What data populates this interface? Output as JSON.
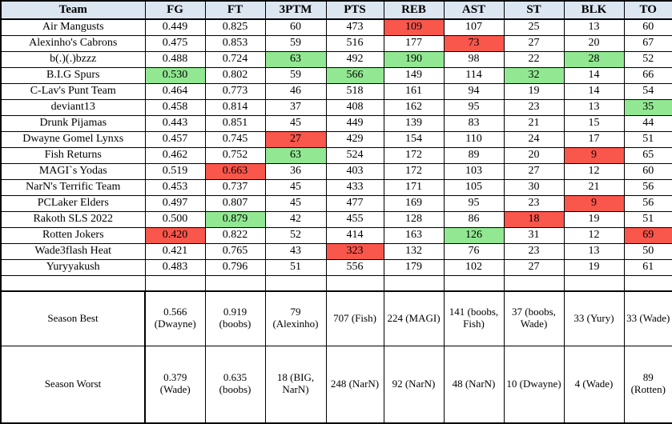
{
  "table": {
    "columns": [
      "Team",
      "FG",
      "FT",
      "3PTM",
      "PTS",
      "REB",
      "AST",
      "ST",
      "BLK",
      "TO"
    ],
    "rows": [
      {
        "team": "Air Mangusts",
        "values": [
          "0.449",
          "0.825",
          "60",
          "473",
          "109",
          "107",
          "25",
          "13",
          "60"
        ],
        "highlights": [
          "",
          "",
          "",
          "",
          "r",
          "",
          "",
          "",
          ""
        ]
      },
      {
        "team": "Alexinho's Cabrons",
        "values": [
          "0.475",
          "0.853",
          "59",
          "516",
          "177",
          "73",
          "27",
          "20",
          "67"
        ],
        "highlights": [
          "",
          "",
          "",
          "",
          "",
          "r",
          "",
          "",
          ""
        ]
      },
      {
        "team": "b(.)(.)bzzz",
        "values": [
          "0.488",
          "0.724",
          "63",
          "492",
          "190",
          "98",
          "22",
          "28",
          "52"
        ],
        "highlights": [
          "",
          "",
          "g",
          "",
          "g",
          "",
          "",
          "g",
          ""
        ]
      },
      {
        "team": "B.I.G Spurs",
        "values": [
          "0.530",
          "0.802",
          "59",
          "566",
          "149",
          "114",
          "32",
          "14",
          "66"
        ],
        "highlights": [
          "g",
          "",
          "",
          "g",
          "",
          "",
          "g",
          "",
          ""
        ]
      },
      {
        "team": "C-Lav's Punt Team",
        "values": [
          "0.464",
          "0.773",
          "46",
          "518",
          "161",
          "94",
          "19",
          "14",
          "54"
        ],
        "highlights": [
          "",
          "",
          "",
          "",
          "",
          "",
          "",
          "",
          ""
        ]
      },
      {
        "team": "deviant13",
        "values": [
          "0.458",
          "0.814",
          "37",
          "408",
          "162",
          "95",
          "23",
          "13",
          "35"
        ],
        "highlights": [
          "",
          "",
          "",
          "",
          "",
          "",
          "",
          "",
          "g"
        ]
      },
      {
        "team": "Drunk Pijamas",
        "values": [
          "0.443",
          "0.851",
          "45",
          "449",
          "139",
          "83",
          "21",
          "15",
          "44"
        ],
        "highlights": [
          "",
          "",
          "",
          "",
          "",
          "",
          "",
          "",
          ""
        ]
      },
      {
        "team": "Dwayne Gomel Lynxs",
        "values": [
          "0.457",
          "0.745",
          "27",
          "429",
          "154",
          "110",
          "24",
          "17",
          "51"
        ],
        "highlights": [
          "",
          "",
          "r",
          "",
          "",
          "",
          "",
          "",
          ""
        ]
      },
      {
        "team": "Fish Returns",
        "values": [
          "0.462",
          "0.752",
          "63",
          "524",
          "172",
          "89",
          "20",
          "9",
          "65"
        ],
        "highlights": [
          "",
          "",
          "g",
          "",
          "",
          "",
          "",
          "r",
          ""
        ]
      },
      {
        "team": "MAGI`s Yodas",
        "values": [
          "0.519",
          "0.663",
          "36",
          "403",
          "172",
          "103",
          "27",
          "12",
          "60"
        ],
        "highlights": [
          "",
          "r",
          "",
          "",
          "",
          "",
          "",
          "",
          ""
        ]
      },
      {
        "team": "NarN's Terrific Team",
        "values": [
          "0.453",
          "0.737",
          "45",
          "433",
          "171",
          "105",
          "30",
          "21",
          "56"
        ],
        "highlights": [
          "",
          "",
          "",
          "",
          "",
          "",
          "",
          "",
          ""
        ]
      },
      {
        "team": "PCLaker Elders",
        "values": [
          "0.497",
          "0.807",
          "45",
          "477",
          "169",
          "95",
          "23",
          "9",
          "56"
        ],
        "highlights": [
          "",
          "",
          "",
          "",
          "",
          "",
          "",
          "r",
          ""
        ]
      },
      {
        "team": "Rakoth SLS 2022",
        "values": [
          "0.500",
          "0.879",
          "42",
          "455",
          "128",
          "86",
          "18",
          "19",
          "51"
        ],
        "highlights": [
          "",
          "g",
          "",
          "",
          "",
          "",
          "r",
          "",
          ""
        ]
      },
      {
        "team": "Rotten Jokers",
        "values": [
          "0.420",
          "0.822",
          "52",
          "414",
          "163",
          "126",
          "31",
          "12",
          "69"
        ],
        "highlights": [
          "r",
          "",
          "",
          "",
          "",
          "g",
          "",
          "",
          "r"
        ]
      },
      {
        "team": "Wade3flash Heat",
        "values": [
          "0.421",
          "0.765",
          "43",
          "323",
          "132",
          "76",
          "23",
          "13",
          "50"
        ],
        "highlights": [
          "",
          "",
          "",
          "r",
          "",
          "",
          "",
          "",
          ""
        ]
      },
      {
        "team": "Yuryyakush",
        "values": [
          "0.483",
          "0.796",
          "51",
          "556",
          "179",
          "102",
          "27",
          "19",
          "61"
        ],
        "highlights": [
          "",
          "",
          "",
          "",
          "",
          "",
          "",
          "",
          ""
        ]
      }
    ],
    "summary": [
      {
        "label": "Season Best",
        "values": [
          "0.566 (Dwayne)",
          "0.919 (boobs)",
          "79 (Alexinho)",
          "707 (Fish)",
          "224 (MAGI)",
          "141 (boobs, Fish)",
          "37 (boobs, Wade)",
          "33 (Yury)",
          "33 (Wade)"
        ]
      },
      {
        "label": "Season Worst",
        "values": [
          "0.379 (Wade)",
          "0.635 (boobs)",
          "18 (BIG, NarN)",
          "248 (NarN)",
          "92 (NarN)",
          "48 (NarN)",
          "10 (Dwayne)",
          "4 (Wade)",
          "89 (Rotten)"
        ]
      }
    ],
    "colors": {
      "header_bg": "#dce6f1",
      "best_highlight": "#92e892",
      "worst_highlight": "#f9564c"
    }
  }
}
